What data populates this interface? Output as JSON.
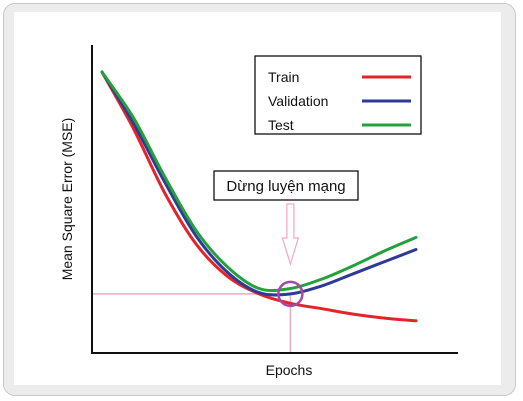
{
  "chart_data": {
    "type": "line",
    "xlabel": "Epochs",
    "ylabel": "Mean Square Error (MSE)",
    "legend_position": "top-right",
    "annotation": "Dừng luyện mạng",
    "grid": false,
    "axis_ticks": false,
    "series": [
      {
        "name": "Train",
        "color": "#e2252b",
        "values": [
          10.0,
          7.9,
          5.5,
          3.6,
          2.4,
          1.75,
          1.4,
          1.2,
          1.0,
          0.85,
          0.75
        ]
      },
      {
        "name": "Validation",
        "color": "#2e3a95",
        "values": [
          10.0,
          8.1,
          5.9,
          3.9,
          2.55,
          1.8,
          1.75,
          2.05,
          2.5,
          2.95,
          3.4
        ]
      },
      {
        "name": "Test",
        "color": "#25a03d",
        "values": [
          10.0,
          8.3,
          6.1,
          4.1,
          2.75,
          1.95,
          1.95,
          2.3,
          2.8,
          3.35,
          3.85
        ]
      }
    ],
    "stop_point": {
      "epoch_index": 6,
      "mse": 1.75
    }
  },
  "colors": {
    "marker": "#a44aa6",
    "guide": "#f4a7c0",
    "axis": "#111111"
  }
}
